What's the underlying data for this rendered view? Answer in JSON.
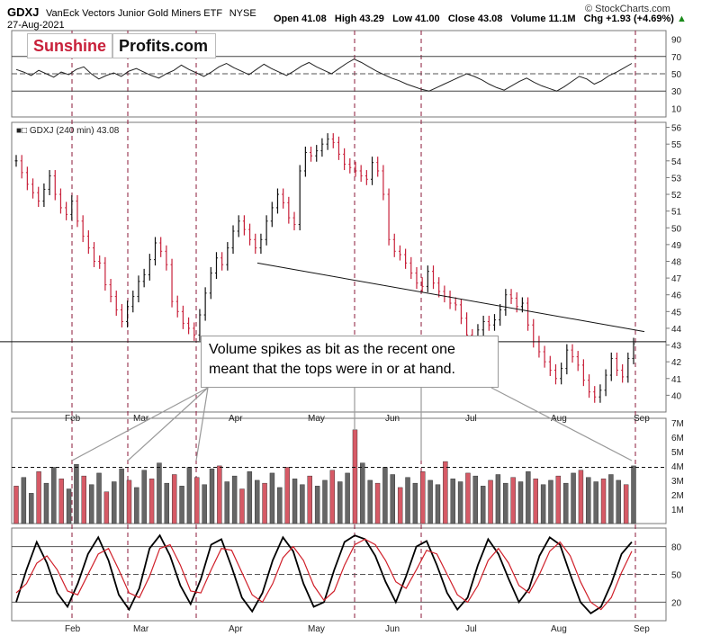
{
  "header": {
    "symbol": "GDXJ",
    "name": "VanEck Vectors Junior Gold Miners ETF",
    "exchange": "NYSE",
    "date": "27-Aug-2021",
    "open": "Open 41.08",
    "high": "High 43.29",
    "low": "Low 41.00",
    "close": "Close 43.08",
    "volume": "Volume 11.1M",
    "change": "Chg +1.93 (+4.69%)",
    "change_arrow": "▲",
    "copyright": "© StockCharts.com"
  },
  "logo": {
    "part1": "Sunshine",
    "part2": "Profits.com"
  },
  "annotation": "Volume spikes as bit as the recent one meant that the tops were in or at hand.",
  "colors": {
    "up": "#111111",
    "down": "#c8203a",
    "marker": "#8b1a3a",
    "rsi_fill": "#a0524d"
  },
  "chart_data": [
    {
      "panel": "rsi",
      "type": "line",
      "y_ticks": [
        10,
        30,
        50,
        70,
        90
      ],
      "ylim": [
        0,
        100
      ],
      "reference_lines": [
        30,
        50,
        70
      ],
      "values": [
        55,
        52,
        48,
        54,
        50,
        46,
        52,
        49,
        55,
        58,
        50,
        44,
        48,
        51,
        47,
        53,
        56,
        52,
        48,
        45,
        50,
        54,
        60,
        55,
        51,
        47,
        52,
        58,
        62,
        57,
        53,
        49,
        55,
        61,
        56,
        52,
        48,
        53,
        59,
        63,
        58,
        54,
        50,
        56,
        62,
        67,
        63,
        58,
        53,
        49,
        45,
        42,
        38,
        35,
        32,
        30,
        34,
        38,
        42,
        46,
        50,
        47,
        43,
        38,
        34,
        31,
        36,
        41,
        45,
        40,
        36,
        33,
        30,
        35,
        41,
        47,
        44,
        38,
        42,
        48,
        52,
        57,
        62
      ]
    },
    {
      "panel": "price",
      "type": "line",
      "title": "GDXJ (240 min) 43.08",
      "ylim": [
        39,
        56
      ],
      "y_ticks": [
        40,
        41,
        42,
        43,
        44,
        45,
        46,
        47,
        48,
        49,
        50,
        51,
        52,
        53,
        54,
        55,
        56
      ],
      "x_labels": [
        "Feb",
        "Mar",
        "Apr",
        "May",
        "Jun",
        "Jul",
        "Aug",
        "Sep"
      ],
      "values": [
        54.0,
        53.3,
        52.6,
        52.1,
        51.6,
        52.3,
        53.1,
        52.0,
        51.2,
        50.8,
        51.6,
        50.4,
        49.5,
        48.8,
        48.0,
        47.9,
        46.6,
        45.9,
        45.1,
        44.4,
        45.3,
        45.9,
        46.8,
        47.2,
        48.1,
        49.1,
        48.6,
        47.8,
        45.6,
        45.0,
        44.3,
        44.0,
        43.6,
        44.8,
        46.1,
        47.3,
        48.2,
        47.8,
        48.8,
        49.8,
        50.4,
        49.9,
        49.3,
        48.8,
        49.3,
        50.4,
        51.2,
        52.0,
        51.5,
        50.6,
        50.2,
        53.4,
        54.5,
        54.3,
        54.6,
        55.0,
        55.3,
        55.1,
        54.4,
        53.8,
        53.6,
        53.4,
        53.1,
        52.9,
        53.9,
        53.4,
        52.0,
        49.3,
        48.6,
        48.4,
        47.9,
        47.3,
        46.7,
        46.5,
        47.4,
        46.7,
        46.2,
        45.9,
        45.5,
        45.4,
        44.6,
        43.6,
        43.5,
        43.9,
        44.4,
        44.2,
        44.5,
        45.1,
        46.0,
        45.8,
        45.3,
        45.5,
        44.2,
        43.2,
        42.6,
        42.0,
        41.5,
        41.0,
        41.6,
        42.7,
        42.3,
        41.8,
        40.9,
        40.2,
        39.9,
        40.3,
        41.2,
        42.2,
        41.5,
        41.1,
        42.2,
        43.08
      ],
      "trendlines": [
        {
          "from": {
            "x": "Apr",
            "y": 47.9
          },
          "to": {
            "x": "Sep",
            "y": 43.8
          }
        },
        {
          "level": 43.2
        }
      ]
    },
    {
      "panel": "volume",
      "type": "bar",
      "y_ticks": [
        "1M",
        "2M",
        "3M",
        "4M",
        "5M",
        "6M",
        "7M"
      ],
      "ylim": [
        0,
        7
      ],
      "reference_line": 3.9,
      "values": [
        2.6,
        3.2,
        2.1,
        3.6,
        2.8,
        3.9,
        3.1,
        2.4,
        4.1,
        3.3,
        2.7,
        3.5,
        2.2,
        2.9,
        3.8,
        3.0,
        2.5,
        3.7,
        3.1,
        4.2,
        2.8,
        3.4,
        2.6,
        3.9,
        3.2,
        2.7,
        3.8,
        4.0,
        2.9,
        3.3,
        2.4,
        3.6,
        3.0,
        2.8,
        3.5,
        2.5,
        3.9,
        3.1,
        2.7,
        3.3,
        2.6,
        3.0,
        3.7,
        2.9,
        3.5,
        6.5,
        4.2,
        3.0,
        2.8,
        3.9,
        3.4,
        2.5,
        3.2,
        2.8,
        3.6,
        3.0,
        2.7,
        4.3,
        3.1,
        2.9,
        3.5,
        3.3,
        2.6,
        3.0,
        3.4,
        2.8,
        3.2,
        2.9,
        3.6,
        3.1,
        2.7,
        3.0,
        3.3,
        2.8,
        3.5,
        3.7,
        3.2,
        2.9,
        3.1,
        3.4,
        3.0,
        2.7,
        4.0
      ]
    },
    {
      "panel": "stochastic",
      "type": "line",
      "y_ticks": [
        20,
        50,
        80
      ],
      "ylim": [
        0,
        100
      ],
      "reference_lines": [
        20,
        50,
        80
      ],
      "series": [
        {
          "name": "%K",
          "color": "#000000",
          "values": [
            20,
            55,
            85,
            62,
            30,
            15,
            40,
            72,
            90,
            65,
            28,
            12,
            35,
            78,
            92,
            70,
            38,
            18,
            45,
            82,
            88,
            58,
            25,
            10,
            30,
            65,
            90,
            75,
            40,
            15,
            20,
            55,
            85,
            92,
            88,
            70,
            42,
            20,
            48,
            80,
            86,
            60,
            30,
            12,
            25,
            60,
            88,
            72,
            45,
            20,
            35,
            70,
            90,
            82,
            50,
            20,
            8,
            15,
            40,
            72,
            85
          ]
        },
        {
          "name": "%D",
          "color": "#d0202a",
          "values": [
            30,
            40,
            62,
            70,
            55,
            32,
            28,
            50,
            72,
            78,
            55,
            30,
            25,
            48,
            78,
            82,
            60,
            32,
            30,
            55,
            78,
            76,
            52,
            28,
            20,
            40,
            68,
            80,
            65,
            38,
            22,
            32,
            60,
            82,
            88,
            82,
            65,
            42,
            35,
            55,
            76,
            72,
            50,
            28,
            20,
            38,
            65,
            78,
            62,
            38,
            30,
            50,
            75,
            85,
            70,
            42,
            20,
            12,
            25,
            52,
            75
          ]
        }
      ]
    },
    {
      "panel": "markers",
      "type": "line",
      "vertical_markers": [
        "Feb",
        "Mar",
        "Apr",
        "May",
        "Jun",
        "Jul",
        "Aug",
        "Sep"
      ]
    }
  ]
}
